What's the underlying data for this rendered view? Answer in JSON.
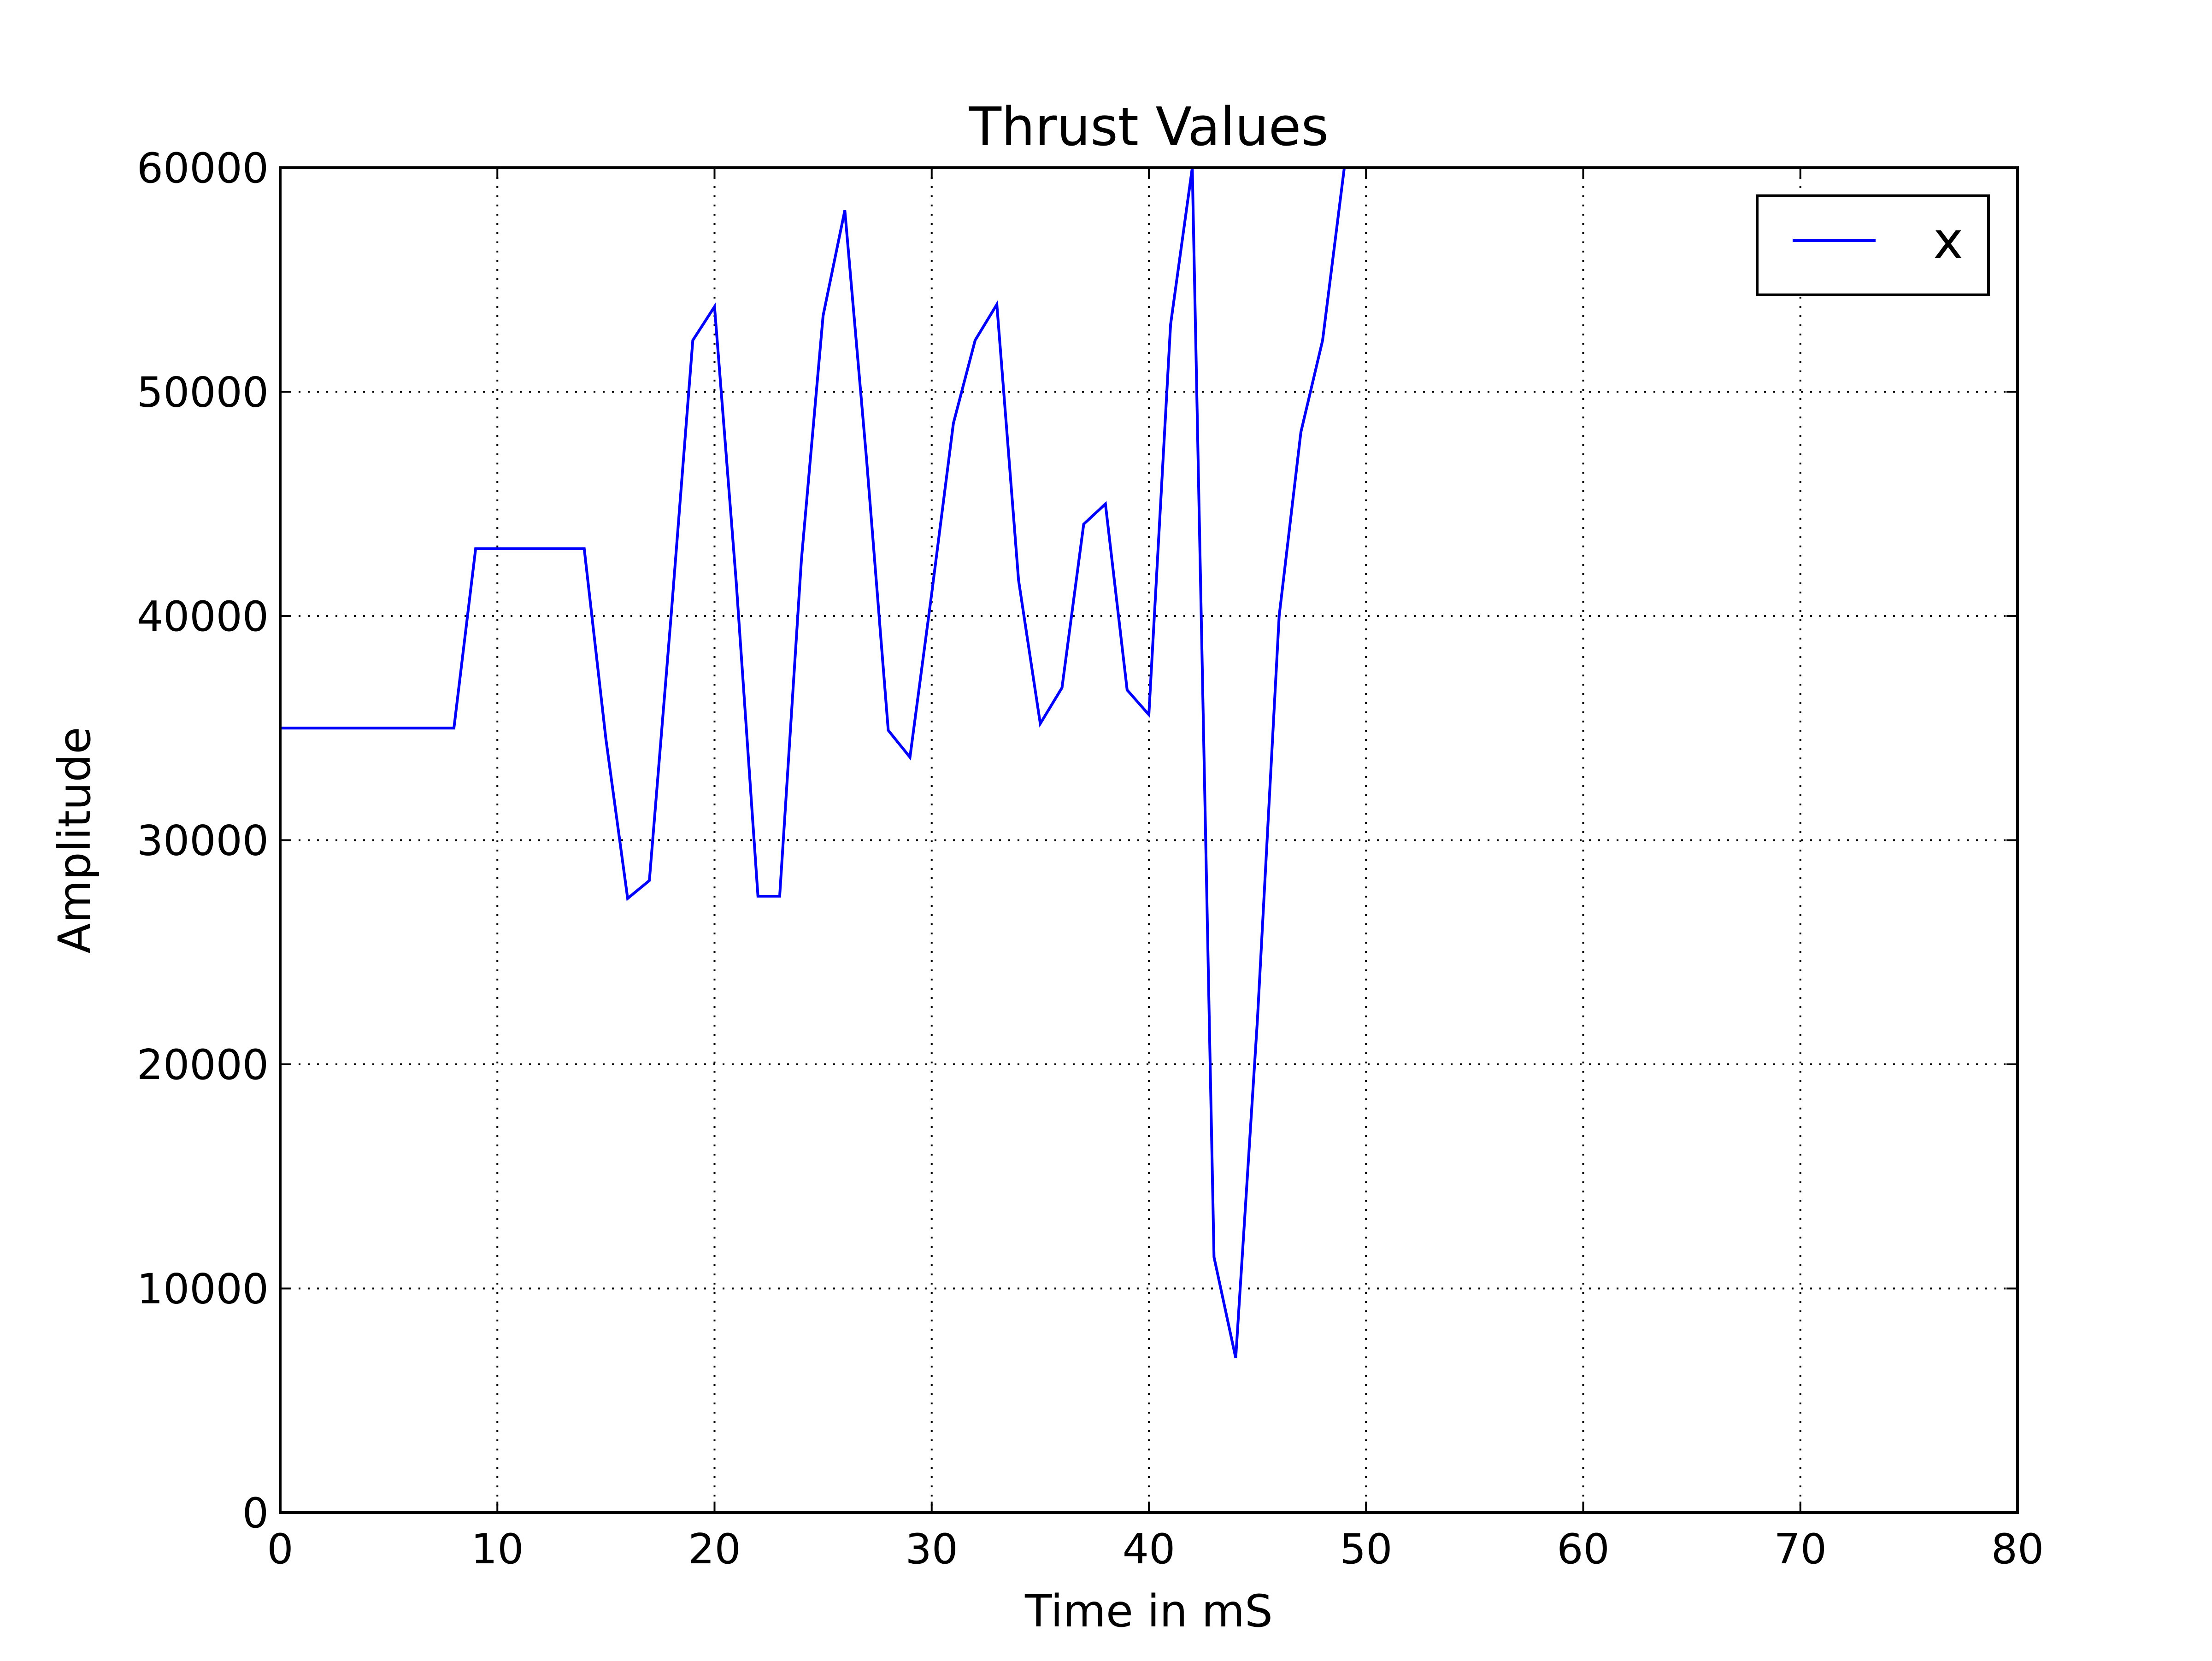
{
  "chart_data": {
    "type": "line",
    "title": "Thrust Values",
    "xlabel": "Time in mS",
    "ylabel": "Amplitude",
    "xlim": [
      0,
      80
    ],
    "ylim": [
      0,
      60000
    ],
    "xticks": [
      "0",
      "10",
      "20",
      "30",
      "40",
      "50",
      "60",
      "70",
      "80"
    ],
    "yticks": [
      "0",
      "10000",
      "20000",
      "30000",
      "40000",
      "50000",
      "60000"
    ],
    "grid": true,
    "legend_position": "top-right",
    "series": [
      {
        "name": "x",
        "color": "#0000ff",
        "x": [
          0,
          1,
          2,
          3,
          4,
          5,
          6,
          7,
          8,
          9,
          10,
          11,
          12,
          13,
          14,
          15,
          16,
          17,
          18,
          19,
          20,
          21,
          22,
          23,
          24,
          25,
          26,
          27,
          28,
          29,
          30,
          31,
          32,
          33,
          34,
          35,
          36,
          37,
          38,
          39,
          40,
          41,
          42,
          43,
          44,
          45,
          46,
          47,
          48,
          49
        ],
        "y": [
          35000,
          35000,
          35000,
          35000,
          35000,
          35000,
          35000,
          35000,
          35000,
          43000,
          43000,
          43000,
          43000,
          43000,
          43000,
          34500,
          27400,
          28200,
          40000,
          52300,
          53800,
          41500,
          27500,
          27500,
          42500,
          53400,
          58100,
          47000,
          34900,
          33700,
          41000,
          48600,
          52300,
          53900,
          41600,
          35200,
          36800,
          44100,
          45000,
          36700,
          35600,
          53000,
          60000,
          11400,
          6900,
          22000,
          40000,
          48200,
          52300,
          60000
        ]
      }
    ]
  }
}
